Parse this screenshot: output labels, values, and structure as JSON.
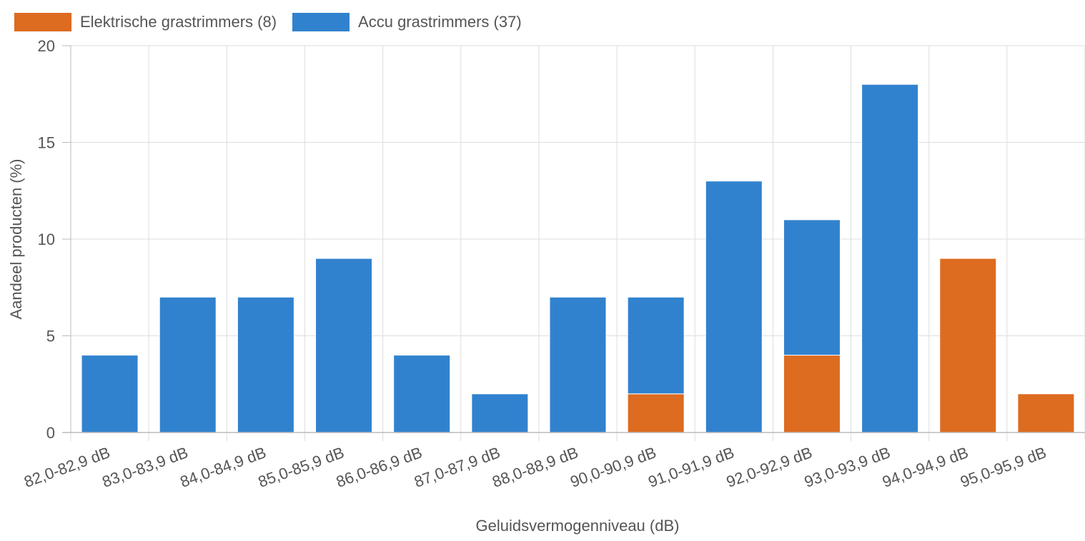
{
  "chart_data": {
    "type": "bar",
    "stacked": true,
    "title": "",
    "xlabel": "Geluidsvermogenniveau (dB)",
    "ylabel": "Aandeel producten (%)",
    "ylim": [
      0,
      20
    ],
    "yticks": [
      0,
      5,
      10,
      15,
      20
    ],
    "grid": true,
    "legend_position": "top-left",
    "categories": [
      "82,0-82,9 dB",
      "83,0-83,9 dB",
      "84,0-84,9 dB",
      "85,0-85,9 dB",
      "86,0-86,9 dB",
      "87,0-87,9 dB",
      "88,0-88,9 dB",
      "90,0-90,9 dB",
      "91,0-91,9 dB",
      "92,0-92,9 dB",
      "93,0-93,9 dB",
      "94,0-94,9 dB",
      "95,0-95,9 dB"
    ],
    "series": [
      {
        "name": "Elektrische grastrimmers (8)",
        "color": "#dd6b20",
        "values": [
          0,
          0,
          0,
          0,
          0,
          0,
          0,
          2,
          0,
          4,
          0,
          9,
          2
        ]
      },
      {
        "name": "Accu grastrimmers (37)",
        "color": "#3182ce",
        "values": [
          4,
          7,
          7,
          9,
          4,
          2,
          7,
          5,
          13,
          7,
          18,
          0,
          0
        ]
      }
    ]
  }
}
